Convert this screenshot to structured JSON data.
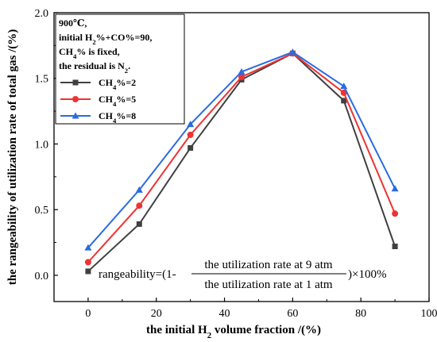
{
  "chart_data": {
    "type": "line",
    "x": [
      0,
      15,
      30,
      45,
      60,
      75,
      90
    ],
    "xlim": [
      -10,
      100
    ],
    "ylim": [
      -0.2,
      2.0
    ],
    "x_ticks": [
      0,
      20,
      40,
      60,
      80,
      100
    ],
    "x_tick_labels": [
      "0",
      "20",
      "40",
      "60",
      "80",
      "100"
    ],
    "y_ticks": [
      0.0,
      0.5,
      1.0,
      1.5,
      2.0
    ],
    "y_tick_labels": [
      "0.0",
      "0.5",
      "1.0",
      "1.5",
      "2.0"
    ],
    "xlabel": {
      "pre": "the initial H",
      "sub": "2",
      "post": " volume fraction /(%)"
    },
    "ylabel": "the rangeability of utilization rate of total gas /(%)",
    "grid": false,
    "legend_position": "top-left",
    "series": [
      {
        "name": {
          "pre": "CH",
          "sub": "4",
          "post": "%=2"
        },
        "marker": "square",
        "color": "#404040",
        "values": [
          0.03,
          0.39,
          0.97,
          1.49,
          1.69,
          1.33,
          0.22
        ]
      },
      {
        "name": {
          "pre": "CH",
          "sub": "4",
          "post": "%=5"
        },
        "marker": "circle",
        "color": "#ef3333",
        "values": [
          0.1,
          0.53,
          1.07,
          1.51,
          1.69,
          1.39,
          0.47
        ]
      },
      {
        "name": {
          "pre": "CH",
          "sub": "4",
          "post": "%=8"
        },
        "marker": "triangle",
        "color": "#2a6be0",
        "values": [
          0.21,
          0.65,
          1.15,
          1.55,
          1.7,
          1.44,
          0.66
        ]
      }
    ],
    "annotation": {
      "line1": "900℃,",
      "line2": {
        "pre": "initial H",
        "sub": "2",
        "post": "%+CO%=90,"
      },
      "line3": {
        "pre": "CH",
        "sub": "4",
        "post": "% is fixed,"
      },
      "line4": {
        "pre": "the residual is N",
        "sub": "2",
        "post": "."
      }
    },
    "formula": {
      "lhs": "rangeability=(1-",
      "numerator": "the utilization rate at 9 atm",
      "denominator": "the utilization rate at 1 atm",
      "rhs": ")×100%"
    }
  }
}
